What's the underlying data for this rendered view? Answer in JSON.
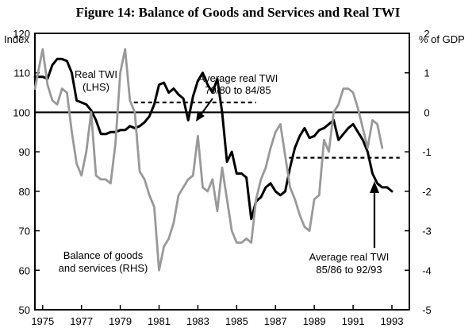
{
  "chart_data": {
    "type": "line",
    "title": "Figure 14: Balance of Goods and Services and Real TWI",
    "left_axis": {
      "unit_label": "Index",
      "ylim": [
        50,
        120
      ],
      "ticks": [
        50,
        60,
        70,
        80,
        90,
        100,
        110,
        120
      ]
    },
    "right_axis": {
      "unit_label": "% of GDP",
      "ylim": [
        -5,
        2
      ],
      "ticks": [
        -5,
        -4,
        -3,
        -2,
        -1,
        0,
        1,
        2
      ]
    },
    "x_axis": {
      "xlim": [
        1974.6,
        1993.9
      ],
      "tick_labels": [
        "1975",
        "1977",
        "1979",
        "1981",
        "1983",
        "1985",
        "1987",
        "1989",
        "1991",
        "1993"
      ]
    },
    "reference_line": {
      "axis": "right",
      "value": 0
    },
    "series": [
      {
        "name": "Real TWI",
        "axis": "left",
        "color": "#000000",
        "x": [
          1974.6,
          1975.0,
          1975.25,
          1975.5,
          1975.75,
          1976.0,
          1976.25,
          1976.5,
          1976.75,
          1977.0,
          1977.25,
          1977.5,
          1977.75,
          1978.0,
          1978.25,
          1978.5,
          1978.75,
          1979.0,
          1979.25,
          1979.5,
          1979.75,
          1980.0,
          1980.25,
          1980.5,
          1980.75,
          1981.0,
          1981.25,
          1981.5,
          1981.75,
          1982.0,
          1982.25,
          1982.5,
          1982.75,
          1983.0,
          1983.25,
          1983.5,
          1983.75,
          1984.0,
          1984.25,
          1984.5,
          1984.75,
          1985.0,
          1985.25,
          1985.5,
          1985.75,
          1986.0,
          1986.25,
          1986.5,
          1986.75,
          1987.0,
          1987.25,
          1987.5,
          1987.75,
          1988.0,
          1988.25,
          1988.5,
          1988.75,
          1989.0,
          1989.25,
          1989.5,
          1989.75,
          1990.0,
          1990.25,
          1990.5,
          1990.75,
          1991.0,
          1991.25,
          1991.5,
          1991.75,
          1992.0,
          1992.25,
          1992.5,
          1992.75,
          1993.0,
          1993.25
        ],
        "values": [
          109,
          109,
          108.5,
          112,
          113.5,
          113.5,
          113,
          110,
          103,
          102.5,
          102,
          100.5,
          98,
          94.5,
          94.5,
          95,
          95,
          95.5,
          95.5,
          96.5,
          96,
          96.5,
          97.5,
          99,
          102,
          107,
          107.5,
          105,
          106,
          104.5,
          103.5,
          98,
          104,
          108,
          110,
          107,
          105,
          108.5,
          100,
          87.5,
          90,
          84.5,
          84.5,
          83.5,
          73,
          77.5,
          78.5,
          81,
          82,
          80,
          79,
          80,
          86,
          91,
          94,
          96,
          93.5,
          94,
          95.5,
          96,
          97,
          98,
          93,
          94.5,
          96,
          97,
          95,
          93,
          90,
          84.5,
          82,
          81,
          81,
          80,
          null
        ]
      },
      {
        "name": "Balance of goods and services",
        "axis": "right",
        "color": "#999999",
        "x": [
          1974.6,
          1975.0,
          1975.25,
          1975.5,
          1975.75,
          1976.0,
          1976.25,
          1976.5,
          1976.75,
          1977.0,
          1977.25,
          1977.5,
          1977.75,
          1978.0,
          1978.25,
          1978.5,
          1978.75,
          1979.0,
          1979.25,
          1979.5,
          1979.75,
          1980.0,
          1980.25,
          1980.5,
          1980.75,
          1981.0,
          1981.25,
          1981.5,
          1981.75,
          1982.0,
          1982.25,
          1982.5,
          1982.75,
          1983.0,
          1983.25,
          1983.5,
          1983.75,
          1984.0,
          1984.25,
          1984.5,
          1984.75,
          1985.0,
          1985.25,
          1985.5,
          1985.75,
          1986.0,
          1986.25,
          1986.5,
          1986.75,
          1987.0,
          1987.25,
          1987.5,
          1987.75,
          1988.0,
          1988.25,
          1988.5,
          1988.75,
          1989.0,
          1989.25,
          1989.5,
          1989.75,
          1990.0,
          1990.25,
          1990.5,
          1990.75,
          1991.0,
          1991.25,
          1991.5,
          1991.75,
          1992.0,
          1992.25,
          1992.5,
          1992.75,
          1993.0,
          1993.25
        ],
        "values": [
          0.6,
          1.6,
          0.7,
          0.3,
          0.2,
          0.6,
          0.5,
          -0.5,
          -1.3,
          -1.6,
          -1.0,
          0.0,
          -1.6,
          -1.7,
          -1.7,
          -1.8,
          -0.8,
          1.0,
          1.6,
          0.3,
          0.0,
          -1.5,
          -1.7,
          -2.1,
          -2.4,
          -4.0,
          -3.4,
          -3.2,
          -2.8,
          -2.1,
          -1.9,
          -1.7,
          -1.6,
          -0.6,
          -1.9,
          -2.0,
          -1.7,
          -2.5,
          -1.4,
          -2.2,
          -3.0,
          -3.3,
          -3.3,
          -3.2,
          -3.3,
          -2.2,
          -1.7,
          -1.4,
          -0.9,
          -0.5,
          -0.3,
          -1.1,
          -1.9,
          -2.2,
          -2.6,
          -2.9,
          -3.0,
          -2.2,
          -2.1,
          -0.7,
          -1.0,
          0.0,
          0.2,
          0.6,
          0.6,
          0.5,
          0.1,
          -0.4,
          -0.9,
          -0.2,
          -0.3,
          -0.9,
          null,
          null,
          null
        ]
      }
    ],
    "reference_segments": [
      {
        "name": "Average real TWI 79/80 to 84/85",
        "axis": "left",
        "x_start": 1979.7,
        "x_end": 1986.0,
        "value": 102.5,
        "style": "dotted"
      },
      {
        "name": "Average real TWI 85/86 to 92/93",
        "axis": "left",
        "x_start": 1987.7,
        "x_end": 1993.4,
        "value": 88.5,
        "style": "dotted"
      }
    ],
    "annotations": [
      {
        "id": "twi",
        "lines": [
          "Real TWI",
          "(LHS)"
        ]
      },
      {
        "id": "avg1",
        "lines": [
          "Average real TWI",
          "79/80 to 84/85"
        ]
      },
      {
        "id": "bal",
        "lines": [
          "Balance of goods",
          "and services (RHS)"
        ]
      },
      {
        "id": "avg2",
        "lines": [
          "Average real TWI",
          "85/86 to 92/93"
        ]
      }
    ]
  }
}
